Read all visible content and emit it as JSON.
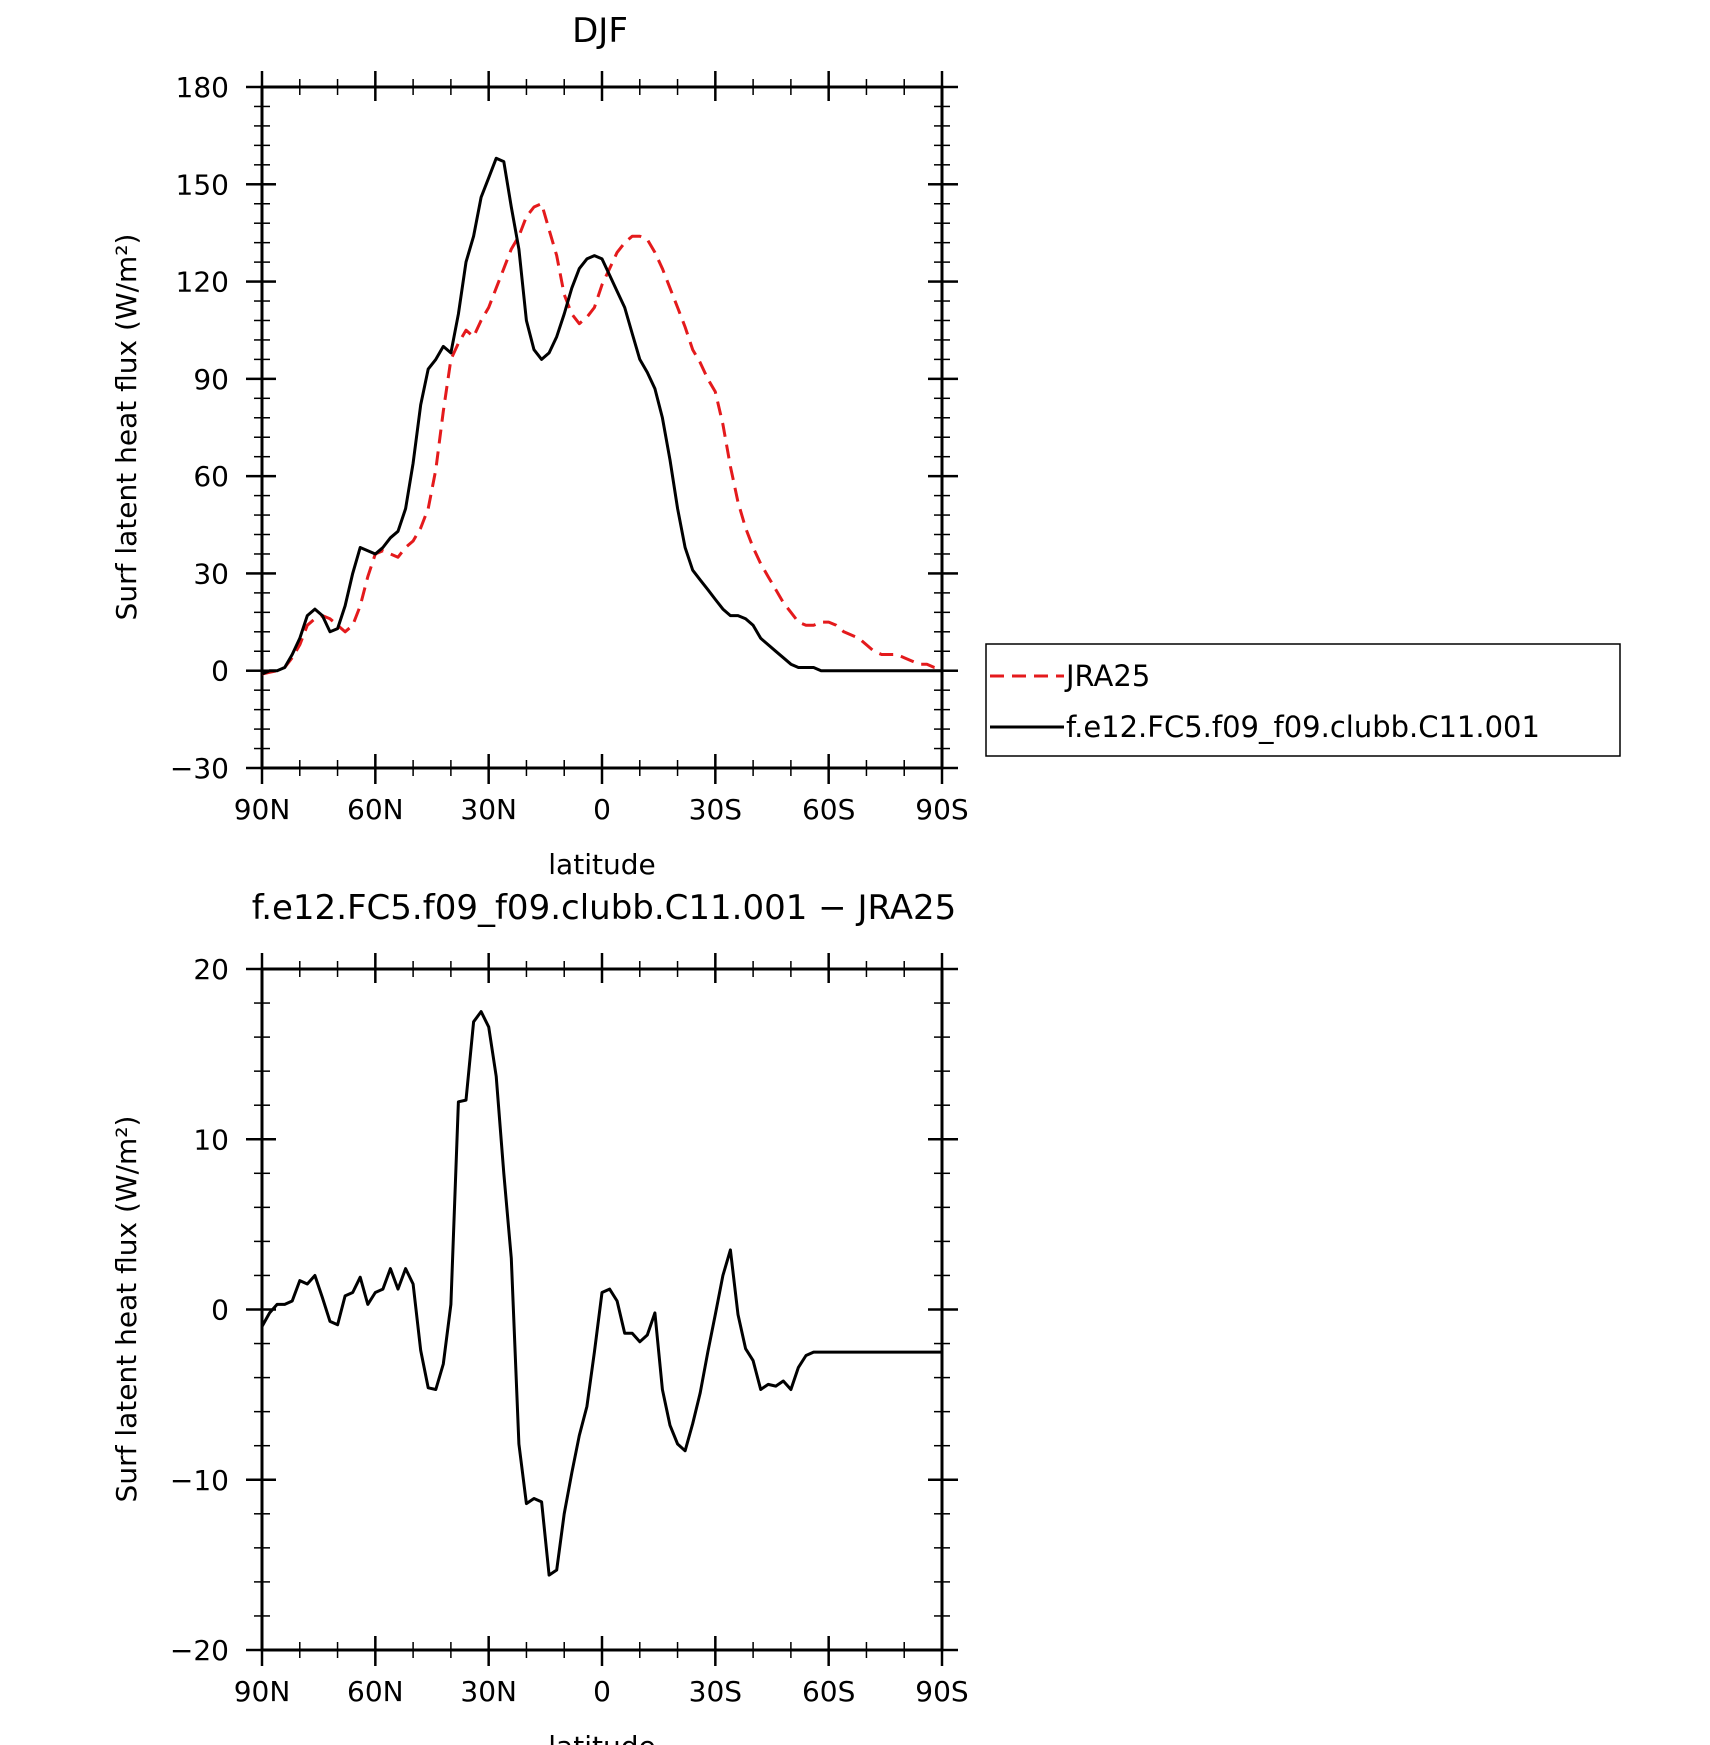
{
  "chart_data": [
    {
      "type": "line",
      "title": "DJF",
      "xlabel": "latitude",
      "ylabel": "Surf latent heat flux (W/m²)",
      "xlim": [
        90,
        -90
      ],
      "ylim": [
        -30,
        180
      ],
      "x_ticks": [
        {
          "value": 90,
          "label": "90N"
        },
        {
          "value": 60,
          "label": "60N"
        },
        {
          "value": 30,
          "label": "30N"
        },
        {
          "value": 0,
          "label": "0"
        },
        {
          "value": -30,
          "label": "30S"
        },
        {
          "value": -60,
          "label": "60S"
        },
        {
          "value": -90,
          "label": "90S"
        }
      ],
      "y_ticks": [
        {
          "value": 180,
          "label": "180"
        },
        {
          "value": 150,
          "label": "150"
        },
        {
          "value": 120,
          "label": "120"
        },
        {
          "value": 90,
          "label": "90"
        },
        {
          "value": 60,
          "label": "60"
        },
        {
          "value": 30,
          "label": "30"
        },
        {
          "value": 0,
          "label": "0"
        },
        {
          "value": -30,
          "label": "−30"
        }
      ],
      "legend": {
        "placement": "right",
        "entries": [
          {
            "name": "JRA25",
            "color": "#e41a1c",
            "style": "dashed"
          },
          {
            "name": "f.e12.FC5.f09_f09.clubb.C11.001",
            "color": "#000000",
            "style": "solid"
          }
        ]
      },
      "x": [
        90,
        88,
        86,
        84,
        82,
        80,
        78,
        76,
        74,
        72,
        70,
        68,
        66,
        64,
        62,
        60,
        58,
        56,
        54,
        52,
        50,
        48,
        46,
        44,
        42,
        40,
        38,
        36,
        34,
        32,
        30,
        28,
        26,
        24,
        22,
        20,
        18,
        16,
        14,
        12,
        10,
        8,
        6,
        4,
        2,
        0,
        -2,
        -4,
        -6,
        -8,
        -10,
        -12,
        -14,
        -16,
        -18,
        -20,
        -22,
        -24,
        -26,
        -28,
        -30,
        -32,
        -34,
        -36,
        -38,
        -40,
        -42,
        -44,
        -46,
        -48,
        -50,
        -52,
        -54,
        -56,
        -58,
        -60,
        -62,
        -64,
        -66,
        -68,
        -70,
        -72,
        -74,
        -76,
        -78,
        -80,
        -82,
        -84,
        -86,
        -88,
        -90
      ],
      "series": [
        {
          "name": "JRA25",
          "color": "#e41a1c",
          "style": "dashed",
          "values": [
            -1,
            -0.5,
            0,
            1,
            4,
            8,
            14,
            16,
            17,
            16,
            14,
            12,
            14,
            20,
            29,
            36,
            37,
            36,
            35,
            38,
            40,
            44,
            50,
            62,
            80,
            96,
            101,
            105,
            103,
            108,
            112,
            118,
            124,
            130,
            134,
            140,
            143,
            144,
            136,
            128,
            116,
            110,
            107,
            109,
            112,
            119,
            124,
            129,
            132,
            134,
            134,
            133,
            129,
            124,
            118,
            112,
            106,
            99,
            95,
            90,
            86,
            76,
            63,
            52,
            44,
            38,
            33,
            29,
            25,
            21,
            18,
            15,
            14,
            14,
            15,
            15,
            14,
            12,
            11,
            10,
            8,
            6,
            5,
            5,
            5,
            4,
            3,
            2,
            2,
            1,
            1
          ]
        },
        {
          "name": "f.e12.FC5.f09_f09.clubb.C11.001",
          "color": "#000000",
          "style": "solid",
          "values": [
            -1,
            0,
            0,
            1,
            5,
            10,
            17,
            19,
            17,
            12,
            13,
            20,
            30,
            38,
            37,
            36,
            38,
            41,
            43,
            50,
            64,
            82,
            93,
            96,
            100,
            98,
            110,
            126,
            134,
            146,
            152,
            158,
            157,
            143,
            130,
            108,
            99,
            96,
            98,
            103,
            110,
            118,
            124,
            127,
            128,
            127,
            122,
            117,
            112,
            104,
            96,
            92,
            87,
            78,
            65,
            50,
            38,
            31,
            28,
            25,
            22,
            19,
            17,
            17,
            16,
            14,
            10,
            8,
            6,
            4,
            2,
            1,
            1,
            1,
            0,
            0,
            0,
            0,
            0,
            0,
            0,
            0,
            0,
            0,
            0,
            0,
            0,
            0,
            0,
            0,
            0
          ]
        }
      ]
    },
    {
      "type": "line",
      "title": "f.e12.FC5.f09_f09.clubb.C11.001 − JRA25",
      "xlabel": "latitude",
      "ylabel": "Surf latent heat flux (W/m²)",
      "xlim": [
        90,
        -90
      ],
      "ylim": [
        -20,
        20
      ],
      "x_ticks": [
        {
          "value": 90,
          "label": "90N"
        },
        {
          "value": 60,
          "label": "60N"
        },
        {
          "value": 30,
          "label": "30N"
        },
        {
          "value": 0,
          "label": "0"
        },
        {
          "value": -30,
          "label": "30S"
        },
        {
          "value": -60,
          "label": "60S"
        },
        {
          "value": -90,
          "label": "90S"
        }
      ],
      "y_ticks": [
        {
          "value": 20,
          "label": "20"
        },
        {
          "value": 10,
          "label": "10"
        },
        {
          "value": 0,
          "label": "0"
        },
        {
          "value": -10,
          "label": "−10"
        },
        {
          "value": -20,
          "label": "−20"
        }
      ],
      "x": [
        90,
        88,
        86,
        84,
        82,
        80,
        78,
        76,
        74,
        72,
        70,
        68,
        66,
        64,
        62,
        60,
        58,
        56,
        54,
        52,
        50,
        48,
        46,
        44,
        42,
        40,
        38,
        36,
        34,
        32,
        30,
        28,
        26,
        24,
        22,
        20,
        18,
        16,
        14,
        12,
        10,
        8,
        6,
        4,
        2,
        0,
        -2,
        -4,
        -6,
        -8,
        -10,
        -12,
        -14,
        -16,
        -18,
        -20,
        -22,
        -24,
        -26,
        -28,
        -30,
        -32,
        -34,
        -36,
        -38,
        -40,
        -42,
        -44,
        -46,
        -48,
        -50,
        -52,
        -54,
        -56,
        -58,
        -60,
        -62,
        -64,
        -66,
        -68,
        -70,
        -72,
        -74,
        -76,
        -78,
        -80,
        -82,
        -84,
        -86,
        -88,
        -90
      ],
      "series": [
        {
          "name": "",
          "color": "#000000",
          "style": "solid",
          "values": [
            -1,
            -0.2,
            0.3,
            0.3,
            0.5,
            1.7,
            1.5,
            2,
            0.7,
            -0.7,
            -0.9,
            0.8,
            1,
            1.9,
            0.3,
            1,
            1.2,
            2.4,
            1.2,
            2.4,
            1.5,
            -2.4,
            -4.6,
            -4.7,
            -3.2,
            0.3,
            12.2,
            12.3,
            16.9,
            17.5,
            16.6,
            13.7,
            8,
            3,
            -7.9,
            -11.4,
            -11.1,
            -11.3,
            -15.6,
            -15.3,
            -12,
            -9.6,
            -7.4,
            -5.7,
            -2.5,
            1,
            1.2,
            0.5,
            -1.4,
            -1.4,
            -1.9,
            -1.5,
            -0.2,
            -4.7,
            -6.8,
            -7.9,
            -8.3,
            -6.7,
            -4.9,
            -2.5,
            -0.3,
            2,
            3.5,
            -0.3,
            -2.3,
            -3,
            -4.7,
            -4.4,
            -4.5,
            -4.2,
            -4.7,
            -3.4,
            -2.7,
            -2.5,
            -2.5,
            -2.5,
            -2.5,
            -2.5,
            -2.5,
            -2.5,
            -2.5,
            -2.5,
            -2.5,
            -2.5,
            -2.5,
            -2.5,
            -2.5,
            -2.5,
            -2.5,
            -2.5,
            -2.5
          ]
        }
      ]
    }
  ]
}
